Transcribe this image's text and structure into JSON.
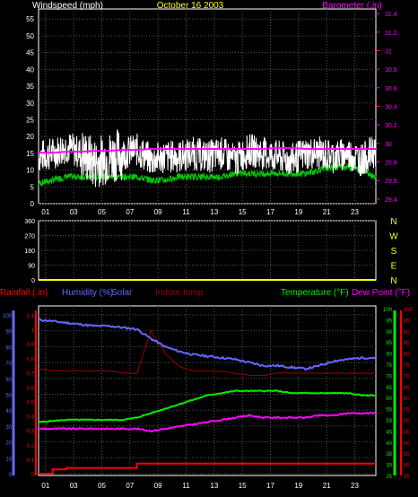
{
  "chart_data": [
    {
      "type": "line",
      "title": "October 16 2003",
      "left_axis_label": "Windspeed (mph)",
      "right_axis_label": "Barometer (.in)",
      "x_ticks": [
        "01",
        "03",
        "05",
        "07",
        "09",
        "11",
        "13",
        "15",
        "17",
        "19",
        "21",
        "23"
      ],
      "y_left_ticks": [
        "0",
        "5",
        "10",
        "15",
        "20",
        "25",
        "30",
        "35",
        "40",
        "45",
        "50",
        "55"
      ],
      "y_left_range": [
        0,
        58
      ],
      "y_right_ticks": [
        "29.4",
        "29.6",
        "29.8",
        "30",
        "30.2",
        "30.4",
        "30.6",
        "30.8",
        "31",
        "31.2",
        "31.4"
      ],
      "y_right_range": [
        29.35,
        31.45
      ],
      "grid": true,
      "series": [
        {
          "name": "Windspeed (mph)",
          "color": "#ffffff",
          "values": [
            14,
            15,
            17,
            15,
            12,
            14,
            15,
            16,
            13,
            14,
            14,
            15,
            14,
            15,
            13,
            16,
            15,
            14,
            13,
            15,
            15,
            14,
            15,
            13,
            16
          ]
        },
        {
          "name": "Wind (green)",
          "color": "#00cc00",
          "values": [
            6,
            7,
            8,
            8,
            8,
            8,
            8,
            8,
            7,
            7,
            8,
            8,
            8,
            8,
            9,
            9,
            9,
            9,
            9,
            9,
            10,
            11,
            11,
            10,
            8
          ]
        },
        {
          "name": "Barometer (.in)",
          "color": "#ff00ff",
          "values": [
            29.9,
            29.9,
            29.91,
            29.91,
            29.92,
            29.92,
            29.93,
            29.93,
            29.94,
            29.94,
            29.94,
            29.94,
            29.94,
            29.94,
            29.94,
            29.94,
            29.94,
            29.95,
            29.95,
            29.94,
            29.94,
            29.94,
            29.94,
            29.94,
            29.94
          ]
        }
      ]
    },
    {
      "type": "line",
      "left_ticks": [
        "360",
        "270",
        "180",
        "90",
        "0"
      ],
      "right_labels": [
        "N",
        "W",
        "S",
        "E",
        "N"
      ],
      "x_ticks": [
        "01",
        "03",
        "05",
        "07",
        "09",
        "11",
        "13",
        "15",
        "17",
        "19",
        "21",
        "23"
      ],
      "grid": true,
      "series": [
        {
          "color": "#ffff00",
          "values": [
            0,
            0,
            0,
            0,
            0,
            0,
            0,
            0,
            0,
            0,
            0,
            0,
            0,
            0,
            0,
            0,
            0,
            0,
            0,
            0,
            0,
            0,
            0,
            0,
            0
          ]
        }
      ]
    },
    {
      "type": "line",
      "labels": {
        "rainfall": "Rainfall (.in)",
        "humidity": "Humidity (%)",
        "solar": "Solar",
        "indoor": "Indoor temp",
        "temperature": "Temperature (°F)",
        "dewpoint": "Dew Point (°F)"
      },
      "x_ticks": [
        "01",
        "03",
        "05",
        "07",
        "09",
        "11",
        "13",
        "15",
        "17",
        "19",
        "21",
        "23"
      ],
      "humidity_ticks": [
        "0",
        "10",
        "20",
        "30",
        "40",
        "50",
        "60",
        "70",
        "80",
        "90",
        "100"
      ],
      "rain_ticks": [
        "0",
        "0.1",
        "0.2",
        "0.3",
        "0.4",
        "0.5",
        "0.6",
        "0.7",
        "0.8",
        "0.9",
        "1",
        "1.1"
      ],
      "temp_ticks_green": [
        "25",
        "30",
        "35",
        "40",
        "45",
        "50",
        "55",
        "60",
        "65",
        "70",
        "75",
        "80",
        "85",
        "90",
        "95",
        "100"
      ],
      "temp_ticks_red": [
        "25",
        "30",
        "35",
        "40",
        "45",
        "50",
        "55",
        "60",
        "65",
        "70",
        "75",
        "80",
        "85",
        "90",
        "95",
        "100"
      ],
      "series": [
        {
          "name": "Humidity (%)",
          "color": "#6666ff",
          "values": [
            97,
            96,
            95,
            94,
            93,
            93,
            92,
            91,
            85,
            80,
            77,
            75,
            74,
            73,
            72,
            70,
            68,
            68,
            67,
            66,
            68,
            71,
            72,
            73,
            73
          ]
        },
        {
          "name": "Temperature (°F)",
          "color": "#00ee00",
          "values": [
            49,
            49.5,
            50,
            50,
            50,
            50,
            50,
            51,
            53,
            55,
            57,
            59,
            61,
            62,
            63,
            63,
            63,
            63,
            62,
            62,
            62,
            62,
            62,
            61,
            61
          ]
        },
        {
          "name": "Dew Point (°F)",
          "color": "#ff00ff",
          "values": [
            46,
            46,
            46,
            46,
            46,
            46,
            46,
            46,
            45,
            46,
            47,
            48,
            49,
            50,
            51,
            52,
            51,
            51,
            51,
            51,
            52,
            52,
            53,
            53,
            53
          ]
        },
        {
          "name": "Indoor temp",
          "color": "#990000",
          "values": [
            73,
            72,
            72,
            72,
            72,
            72,
            71,
            71,
            90,
            80,
            74,
            72,
            72,
            72,
            71,
            70,
            70,
            71,
            71,
            71,
            71,
            71,
            71,
            71,
            71
          ]
        },
        {
          "name": "Rainfall (.in)",
          "color": "#ff0000",
          "values": [
            0,
            0.03,
            0.04,
            0.04,
            0.04,
            0.04,
            0.04,
            0.07,
            0.07,
            0.07,
            0.07,
            0.07,
            0.07,
            0.07,
            0.07,
            0.07,
            0.07,
            0.07,
            0.07,
            0.07,
            0.07,
            0.07,
            0.07,
            0.07,
            0.07
          ]
        }
      ]
    }
  ],
  "colors": {
    "background": "#000000",
    "grid": "#555555",
    "frame": "#ffffff",
    "left_axis": "#ffffff",
    "right_axis": "#ff00ff",
    "title": "#ffff00",
    "direction_labels": "#ffff00",
    "rain": "#ff0000",
    "humidity": "#6666ff",
    "temp": "#00ee00",
    "dewpoint": "#ff00ff",
    "indoor": "#990000"
  }
}
